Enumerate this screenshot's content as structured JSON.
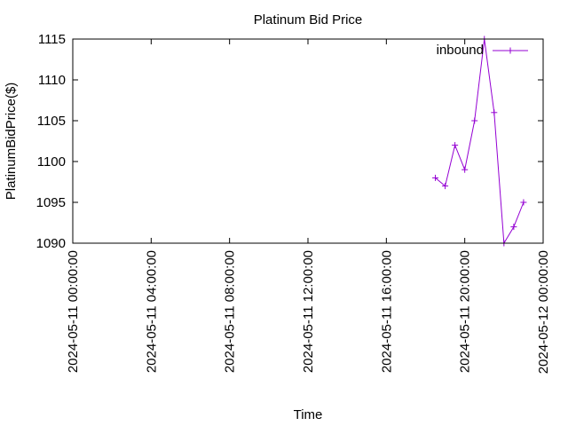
{
  "chart_data": {
    "type": "line",
    "title": "Platinum Bid Price",
    "xlabel": "Time",
    "ylabel": "PlatinumBidPrice($)",
    "xlim": [
      "2024-05-11 00:00:00",
      "2024-05-12 00:00:00"
    ],
    "ylim": [
      1090,
      1115
    ],
    "x_ticks": [
      "2024-05-11 00:00:00",
      "2024-05-11 04:00:00",
      "2024-05-11 08:00:00",
      "2024-05-11 12:00:00",
      "2024-05-11 16:00:00",
      "2024-05-11 20:00:00",
      "2024-05-12 00:00:00"
    ],
    "y_ticks": [
      1090,
      1095,
      1100,
      1105,
      1110,
      1115
    ],
    "grid": false,
    "legend_position": "top-right",
    "series": [
      {
        "name": "inbound",
        "color": "#9400d3",
        "marker": "plus",
        "points": [
          {
            "x": "2024-05-11 18:30:00",
            "y": 1098
          },
          {
            "x": "2024-05-11 19:00:00",
            "y": 1097
          },
          {
            "x": "2024-05-11 19:30:00",
            "y": 1102
          },
          {
            "x": "2024-05-11 20:00:00",
            "y": 1099
          },
          {
            "x": "2024-05-11 20:30:00",
            "y": 1105
          },
          {
            "x": "2024-05-11 21:00:00",
            "y": 1115
          },
          {
            "x": "2024-05-11 21:30:00",
            "y": 1106
          },
          {
            "x": "2024-05-11 22:00:00",
            "y": 1090
          },
          {
            "x": "2024-05-11 22:30:00",
            "y": 1092
          },
          {
            "x": "2024-05-11 23:00:00",
            "y": 1095
          }
        ]
      }
    ]
  }
}
